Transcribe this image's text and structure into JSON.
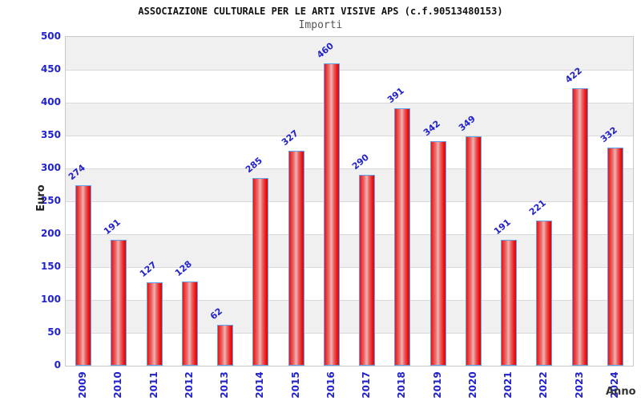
{
  "title": "ASSOCIAZIONE CULTURALE PER LE ARTI VISIVE APS (c.f.90513480153)",
  "subtitle": "Importi",
  "chart_data": {
    "type": "bar",
    "title": "ASSOCIAZIONE CULTURALE PER LE ARTI VISIVE APS (c.f.90513480153)",
    "subtitle": "Importi",
    "categories": [
      "2009",
      "2010",
      "2011",
      "2012",
      "2013",
      "2014",
      "2015",
      "2016",
      "2017",
      "2018",
      "2019",
      "2020",
      "2021",
      "2022",
      "2023",
      "2024"
    ],
    "values": [
      274,
      191,
      127,
      128,
      62,
      285,
      327,
      460,
      290,
      391,
      342,
      349,
      191,
      221,
      422,
      332
    ],
    "xlabel": "Anno",
    "ylabel": "Euro",
    "ylim": [
      0,
      500
    ],
    "ytick_step": 50,
    "yticks": [
      0,
      50,
      100,
      150,
      200,
      250,
      300,
      350,
      400,
      450,
      500
    ],
    "grid": true,
    "legend": "none",
    "style": {
      "bar_fill": "#ee1212",
      "bar_highlight": "#f2b3b3",
      "bar_border": "#63a1e8",
      "label_color": "#2222cc",
      "band_color": "#f0f0f0",
      "gridline_color": "#dadada",
      "plot_border": "#c9c9c9",
      "title_color": "#111111",
      "subtitle_color": "#555555"
    }
  }
}
